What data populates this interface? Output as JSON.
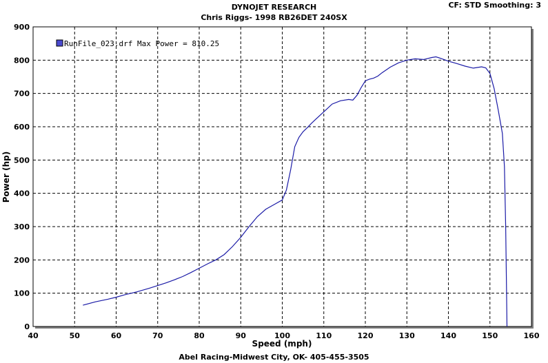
{
  "header": {
    "title": "DYNOJET RESEARCH",
    "subtitle": "Chris Riggs- 1998 RB26DET 240SX",
    "settings": "CF: STD  Smoothing: 3"
  },
  "footer": {
    "text": "Abel Racing-Midwest City, OK- 405-455-3505"
  },
  "chart_data": {
    "type": "line",
    "title": "DYNOJET RESEARCH",
    "subtitle": "Chris Riggs- 1998 RB26DET 240SX",
    "xlabel": "Speed (mph)",
    "ylabel": "Power (hp)",
    "xlim": [
      40,
      160
    ],
    "ylim": [
      0,
      900
    ],
    "xticks": [
      40,
      50,
      60,
      70,
      80,
      90,
      100,
      110,
      120,
      130,
      140,
      150,
      160
    ],
    "yticks": [
      0,
      100,
      200,
      300,
      400,
      500,
      600,
      700,
      800,
      900
    ],
    "grid": true,
    "legend_position": "top-left",
    "series": [
      {
        "name": "RunFile_023.drf Max Power = 810.25",
        "color": "#1a1aa6",
        "x": [
          52,
          55,
          58,
          60,
          62,
          65,
          68,
          70,
          72,
          74,
          76,
          78,
          80,
          82,
          84,
          86,
          88,
          90,
          92,
          94,
          96,
          98,
          100,
          101,
          102,
          103,
          104,
          105,
          106,
          107,
          108,
          110,
          112,
          114,
          116,
          117,
          118,
          119,
          120,
          121,
          122,
          123,
          124,
          126,
          128,
          130,
          132,
          134,
          136,
          137,
          138,
          140,
          142,
          144,
          146,
          148,
          149,
          150,
          151,
          152,
          153,
          153.5,
          153.8,
          154,
          154.1
        ],
        "y": [
          64,
          74,
          82,
          88,
          95,
          104,
          115,
          123,
          131,
          140,
          150,
          162,
          175,
          188,
          200,
          216,
          240,
          268,
          300,
          330,
          352,
          366,
          380,
          410,
          470,
          540,
          568,
          585,
          597,
          610,
          622,
          645,
          668,
          678,
          682,
          680,
          695,
          718,
          738,
          743,
          746,
          752,
          762,
          779,
          792,
          800,
          804,
          802,
          808,
          810,
          806,
          797,
          790,
          782,
          776,
          780,
          777,
          760,
          715,
          650,
          580,
          480,
          300,
          100,
          0
        ]
      }
    ]
  }
}
